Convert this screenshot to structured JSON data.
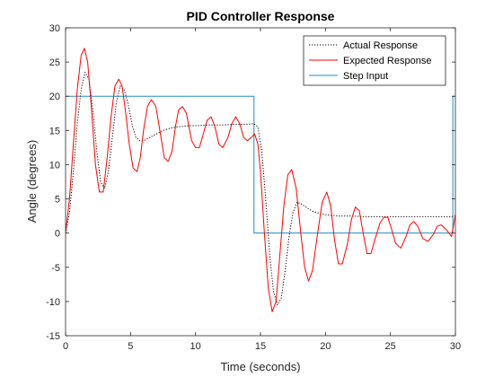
{
  "chart_data": {
    "type": "line",
    "title": "PID Controller Response",
    "xlabel": "Time (seconds)",
    "ylabel": "Angle (degrees)",
    "xlim": [
      0,
      30
    ],
    "ylim": [
      -15,
      30
    ],
    "xticks": [
      0,
      5,
      10,
      15,
      20,
      25,
      30
    ],
    "yticks": [
      -15,
      -10,
      -5,
      0,
      5,
      10,
      15,
      20,
      25,
      30
    ],
    "grid": false,
    "legend_position": "top-right",
    "series": [
      {
        "name": "Actual Response",
        "color": "#000000",
        "style": "dotted",
        "x": [
          0,
          0.3,
          0.6,
          0.9,
          1.2,
          1.5,
          1.8,
          2.1,
          2.4,
          2.7,
          3.0,
          3.3,
          3.6,
          3.9,
          4.2,
          4.5,
          4.8,
          5.1,
          5.4,
          5.7,
          6.0,
          6.5,
          7.0,
          7.5,
          8.0,
          8.5,
          9.0,
          9.5,
          10.0,
          11.0,
          12.0,
          13.0,
          14.0,
          14.5,
          14.8,
          15.1,
          15.4,
          15.7,
          16.0,
          16.3,
          16.6,
          16.9,
          17.2,
          17.5,
          17.8,
          18.1,
          18.5,
          19.0,
          19.5,
          20.0,
          21.0,
          22.0,
          23.0,
          24.0,
          25.0,
          26.0,
          27.0,
          28.0,
          29.0,
          29.7,
          30.0
        ],
        "y": [
          0,
          3,
          9,
          16,
          21,
          23.5,
          22.5,
          18,
          12,
          7.5,
          6.5,
          9,
          14,
          19,
          21.5,
          21,
          19,
          16,
          14,
          13.5,
          13.5,
          14,
          14.5,
          15,
          15.3,
          15.5,
          15.6,
          15.7,
          15.7,
          15.8,
          15.8,
          15.9,
          15.9,
          16,
          15.5,
          12,
          5,
          -3,
          -8.5,
          -10.5,
          -9.5,
          -5.5,
          -0.5,
          3,
          4.5,
          4.3,
          3.8,
          3.2,
          2.9,
          2.7,
          2.5,
          2.5,
          2.4,
          2.4,
          2.4,
          2.4,
          2.4,
          2.4,
          2.4,
          2.4,
          2.5
        ]
      },
      {
        "name": "Expected Response",
        "color": "#ff0000",
        "style": "solid",
        "x": [
          0,
          0.3,
          0.6,
          0.9,
          1.2,
          1.45,
          1.7,
          2.0,
          2.3,
          2.6,
          2.9,
          3.2,
          3.5,
          3.8,
          4.1,
          4.35,
          4.6,
          4.9,
          5.2,
          5.5,
          5.75,
          6.0,
          6.3,
          6.6,
          6.95,
          7.3,
          7.6,
          7.9,
          8.2,
          8.45,
          8.7,
          9.0,
          9.3,
          9.7,
          10.0,
          10.3,
          10.6,
          10.9,
          11.2,
          11.5,
          11.8,
          12.1,
          12.5,
          12.8,
          13.1,
          13.4,
          13.7,
          14.0,
          14.3,
          14.55,
          14.8,
          15.0,
          15.3,
          15.6,
          15.9,
          16.2,
          16.5,
          16.8,
          17.1,
          17.4,
          17.75,
          18.1,
          18.4,
          18.7,
          19.0,
          19.4,
          19.75,
          20.1,
          20.4,
          20.7,
          21.0,
          21.3,
          21.7,
          22.0,
          22.3,
          22.6,
          22.9,
          23.2,
          23.5,
          23.8,
          24.2,
          24.5,
          24.8,
          25.1,
          25.4,
          25.8,
          26.2,
          26.5,
          26.8,
          27.1,
          27.5,
          27.9,
          28.3,
          28.6,
          28.9,
          29.3,
          29.7,
          30.0
        ],
        "y": [
          0,
          5,
          13,
          21,
          26,
          27,
          25,
          18,
          10,
          6,
          6,
          11,
          17,
          21.5,
          22.5,
          21.5,
          18,
          13,
          9.5,
          9,
          11,
          15,
          18.5,
          19.5,
          18.5,
          14.5,
          11,
          10.5,
          12,
          15.5,
          18,
          18.5,
          17.5,
          13.5,
          12.5,
          12.5,
          14.5,
          16.5,
          17,
          15.5,
          13,
          12.5,
          14,
          16,
          17,
          16,
          14,
          13.5,
          14,
          14.5,
          13,
          9,
          0,
          -8,
          -11.5,
          -10,
          -3,
          4,
          8.5,
          9.3,
          6.5,
          0,
          -5,
          -7,
          -5.5,
          0,
          4.5,
          6,
          4,
          -1,
          -4.5,
          -4.5,
          -1.5,
          2,
          3.8,
          3.3,
          0,
          -3,
          -3,
          -1,
          1.5,
          2.3,
          2.3,
          0.5,
          -1.5,
          -2.2,
          -0.5,
          1.2,
          1.7,
          1,
          -0.8,
          -1.2,
          -0.2,
          1,
          1.2,
          0.5,
          -0.5,
          2.7
        ]
      },
      {
        "name": "Step Input",
        "color": "#1f8fbf",
        "style": "solid",
        "x": [
          0,
          14.5,
          14.5,
          29.8,
          29.8,
          30
        ],
        "y": [
          20,
          20,
          0,
          0,
          20,
          20
        ]
      }
    ]
  }
}
